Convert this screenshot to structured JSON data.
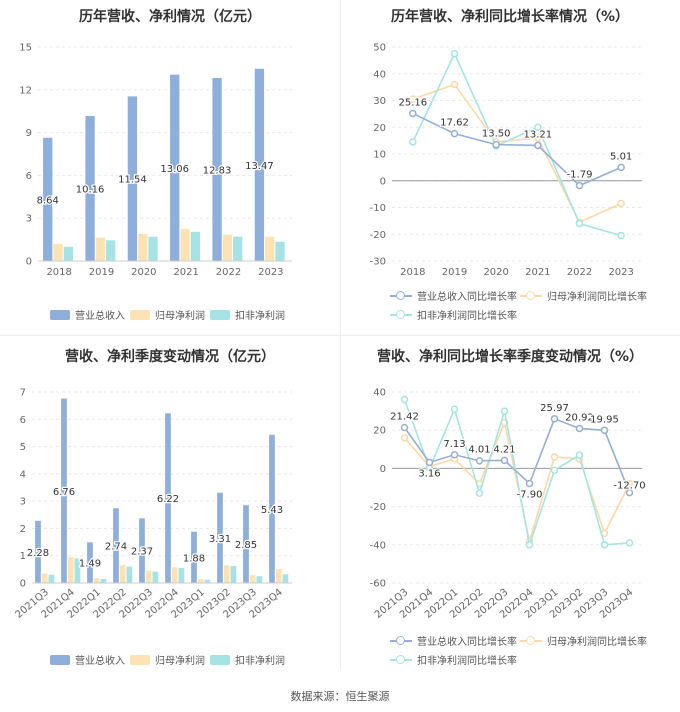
{
  "source": "数据来源：恒生聚源",
  "colors": {
    "blue": "#8eaedb",
    "orange": "#fde2b4",
    "teal": "#a6e3e5",
    "lineBlue": "#96aed6",
    "lineOrange": "#fdd7a6",
    "lineTeal": "#a6e3e5"
  },
  "chart_data": [
    {
      "type": "bar",
      "title": "历年营收、净利情况（亿元）",
      "categories": [
        "2018",
        "2019",
        "2020",
        "2021",
        "2022",
        "2023"
      ],
      "ylim": [
        0,
        15
      ],
      "yticks": [
        "0",
        "3",
        "6",
        "9",
        "12",
        "15"
      ],
      "series": [
        {
          "name": "营业总收入",
          "values": [
            8.64,
            10.16,
            11.54,
            13.06,
            12.83,
            13.47
          ],
          "labels": [
            "8.64",
            "10.16",
            "11.54",
            "13.06",
            "12.83",
            "13.47"
          ]
        },
        {
          "name": "归母净利润",
          "values": [
            1.2,
            1.65,
            1.9,
            2.25,
            1.85,
            1.7
          ]
        },
        {
          "name": "扣非净利润",
          "values": [
            1.0,
            1.45,
            1.7,
            2.05,
            1.7,
            1.35
          ]
        }
      ],
      "legend": "bottom"
    },
    {
      "type": "line",
      "title": "历年营收、净利同比增长率情况（%）",
      "categories": [
        "2018",
        "2019",
        "2020",
        "2021",
        "2022",
        "2023"
      ],
      "ylim": [
        -30,
        50
      ],
      "yticks": [
        "-30",
        "-20",
        "-10",
        "0",
        "10",
        "20",
        "30",
        "40",
        "50"
      ],
      "series": [
        {
          "name": "营业总收入同比增长率",
          "values": [
            25.16,
            17.62,
            13.5,
            13.21,
            -1.79,
            5.01
          ],
          "labels": [
            "25.16",
            "17.62",
            "13.50",
            "13.21",
            "-1.79",
            "5.01"
          ]
        },
        {
          "name": "归母净利润同比增长率",
          "values": [
            30.5,
            36.0,
            14.5,
            16.0,
            -15.5,
            -8.5
          ]
        },
        {
          "name": "扣非净利润同比增长率",
          "values": [
            14.5,
            47.5,
            13.0,
            20.0,
            -16.0,
            -20.5
          ]
        }
      ],
      "legend": "bottom"
    },
    {
      "type": "bar",
      "title": "营收、净利季度变动情况（亿元）",
      "categories": [
        "2021Q3",
        "2021Q4",
        "2022Q1",
        "2022Q2",
        "2022Q3",
        "2022Q4",
        "2023Q1",
        "2023Q2",
        "2023Q3",
        "2023Q4"
      ],
      "ylim": [
        0,
        7
      ],
      "yticks": [
        "0",
        "1",
        "2",
        "3",
        "4",
        "5",
        "6",
        "7"
      ],
      "series": [
        {
          "name": "营业总收入",
          "values": [
            2.28,
            6.76,
            1.49,
            2.74,
            2.37,
            6.22,
            1.88,
            3.31,
            2.85,
            5.43
          ],
          "labels": [
            "2.28",
            "6.76",
            "1.49",
            "2.74",
            "2.37",
            "6.22",
            "1.88",
            "3.31",
            "2.85",
            "5.43"
          ]
        },
        {
          "name": "归母净利润",
          "values": [
            0.35,
            0.95,
            0.18,
            0.65,
            0.45,
            0.58,
            0.15,
            0.65,
            0.3,
            0.52
          ]
        },
        {
          "name": "扣非净利润",
          "values": [
            0.3,
            0.9,
            0.15,
            0.6,
            0.42,
            0.55,
            0.12,
            0.62,
            0.25,
            0.32
          ]
        }
      ],
      "legend": "bottom"
    },
    {
      "type": "line",
      "title": "营收、净利同比增长率季度变动情况（%）",
      "categories": [
        "2021Q3",
        "2021Q4",
        "2022Q1",
        "2022Q2",
        "2022Q3",
        "2022Q4",
        "2023Q1",
        "2023Q2",
        "2023Q3",
        "2023Q4"
      ],
      "ylim": [
        -60,
        40
      ],
      "yticks": [
        "-60",
        "-40",
        "-20",
        "0",
        "20",
        "40"
      ],
      "series": [
        {
          "name": "营业总收入同比增长率",
          "values": [
            21.42,
            3.16,
            7.13,
            4.01,
            4.21,
            -7.9,
            25.97,
            20.92,
            19.95,
            -12.7
          ],
          "labels": [
            "21.42",
            "3.16",
            "7.13",
            "4.01",
            "4.21",
            "-7.90",
            "25.97",
            "20.92",
            "19.95",
            "-12.70"
          ]
        },
        {
          "name": "归母净利润同比增长率",
          "values": [
            16.0,
            1.0,
            5.0,
            -8.0,
            24.0,
            -38.0,
            6.0,
            5.0,
            -34.0,
            -8.0
          ]
        },
        {
          "name": "扣非净利润同比增长率",
          "values": [
            36.0,
            0.0,
            31.0,
            -13.0,
            30.0,
            -40.0,
            -1.0,
            7.0,
            -40.0,
            -39.0
          ]
        }
      ],
      "legend": "bottom"
    }
  ]
}
